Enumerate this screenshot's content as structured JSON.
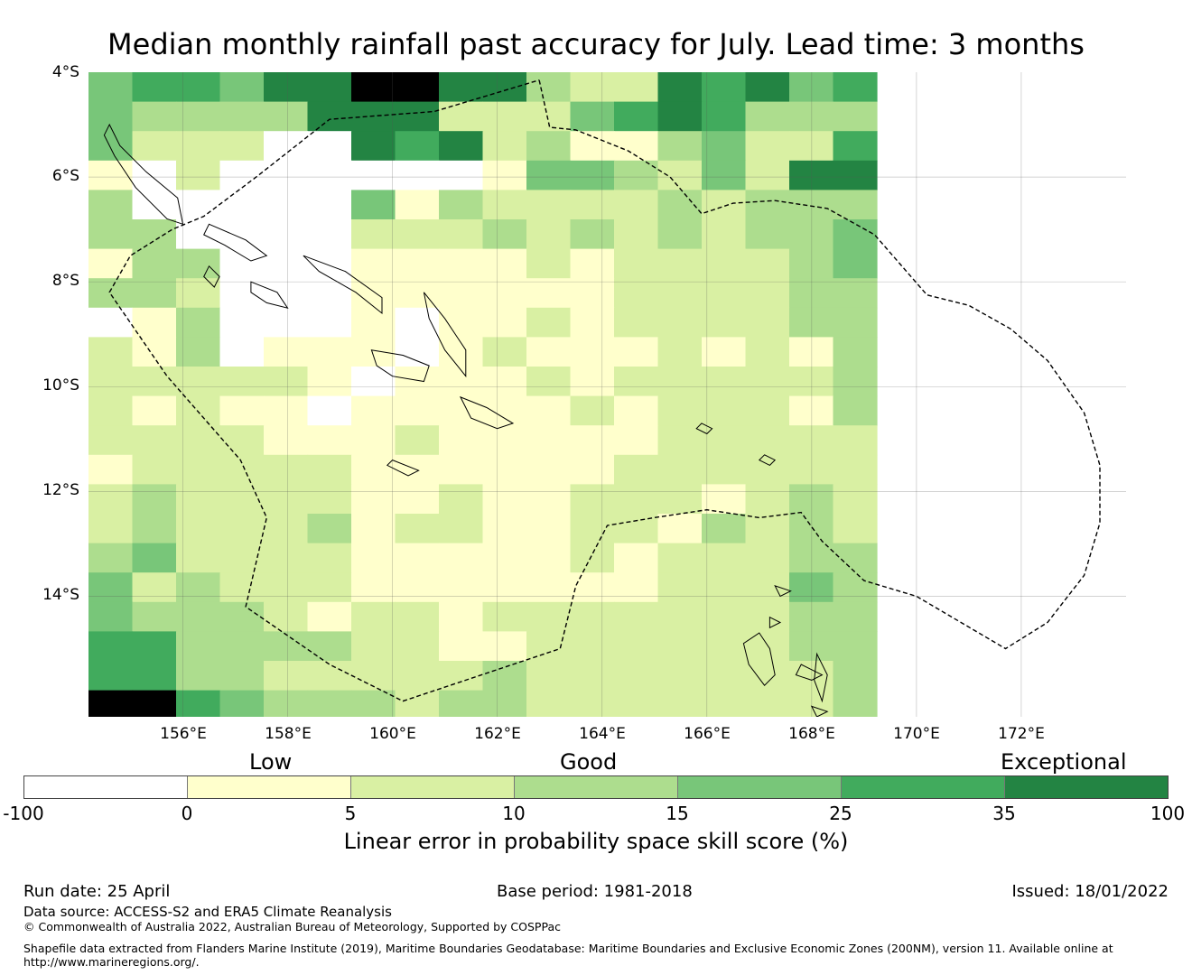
{
  "title": "Median monthly rainfall past accuracy for July. Lead time: 3 months",
  "map": {
    "lat_labels": [
      "4°S",
      "6°S",
      "8°S",
      "10°S",
      "12°S",
      "14°S"
    ],
    "lon_labels": [
      "156°E",
      "158°E",
      "160°E",
      "162°E",
      "164°E",
      "166°E",
      "168°E",
      "170°E",
      "172°E"
    ],
    "extent": {
      "lon_min": 154.2,
      "lon_max": 174.0,
      "lat_min": -16.3,
      "lat_max": -4.0
    },
    "cell_size_deg": 0.83,
    "grid": [
      "455466776632265645",
      "433336662224565333",
      "422200656231134225",
      "102000000144324266",
      "300000413222232333",
      "330000222323232334",
      "133000111121222234",
      "332000111111222233",
      "013000101121222233",
      "213011101211121213",
      "222221011121222223",
      "212110111112122213",
      "222211121111122222",
      "122222111111222222",
      "232222112112221232",
      "232223122112213232",
      "342222111112122233",
      "423222111111122243",
      "433321221222222233",
      "553333221122222233",
      "553322222322222223",
      "775433323322222223"
    ]
  },
  "colorbar": {
    "categories": [
      "Low",
      "Good",
      "Exceptional"
    ],
    "ticks": [
      "-100",
      "0",
      "5",
      "10",
      "15",
      "25",
      "35",
      "100"
    ],
    "colors": [
      "#ffffff",
      "#ffffcc",
      "#d9f0a3",
      "#addd8e",
      "#78c679",
      "#41ab5d",
      "#238443"
    ],
    "label": "Linear error in probability space skill score (%)"
  },
  "footer": {
    "run_date": "Run date: 25 April",
    "base_period": "Base period: 1981-2018",
    "issued": "Issued: 18/01/2022",
    "source": "Data source: ACCESS-S2 and ERA5 Climate Reanalysis",
    "copyright": "© Commonwealth of Australia 2022, Australian Bureau of Meteorology, Supported by COSPPac",
    "shapefile_line1": "Shapefile data extracted from Flanders Marine Institute (2019), Maritime Boundaries Geodatabase: Maritime Boundaries and Exclusive Economic Zones (200NM), version 11. Available online at",
    "shapefile_line2": "http://www.marineregions.org/."
  }
}
